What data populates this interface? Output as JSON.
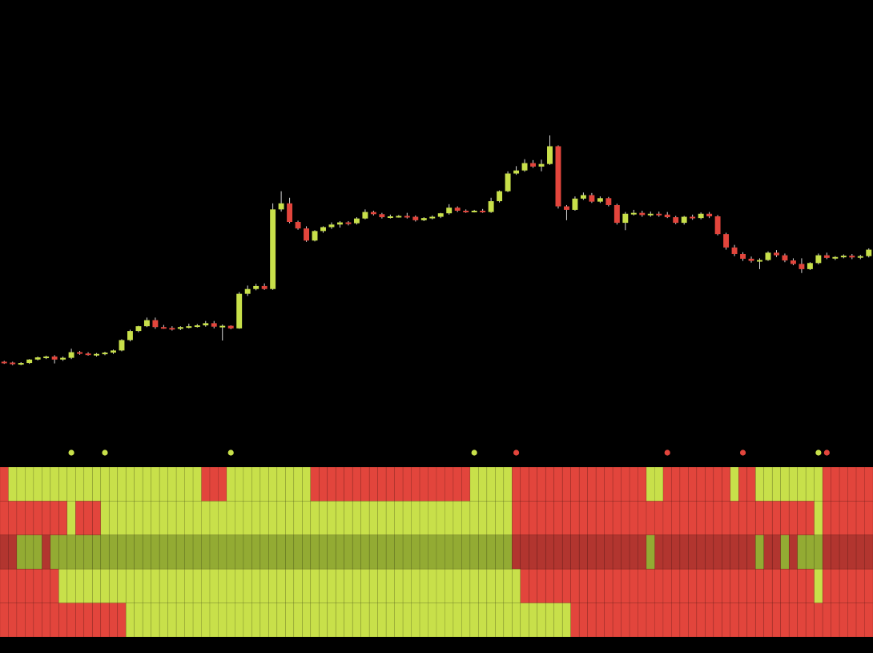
{
  "colors": {
    "background": "#000000",
    "up": "#c8e04a",
    "down": "#e2453c",
    "up_dim": "#93ab33",
    "down_dim": "#b2352f",
    "grid_line": "#000000"
  },
  "chart_data": [
    {
      "type": "candlestick",
      "title": "",
      "xlabel": "",
      "ylabel": "",
      "axes_visible": false,
      "grid": false,
      "ylim": [
        0,
        100
      ],
      "x": [
        0,
        1,
        2,
        3,
        4,
        5,
        6,
        7,
        8,
        9,
        10,
        11,
        12,
        13,
        14,
        15,
        16,
        17,
        18,
        19,
        20,
        21,
        22,
        23,
        24,
        25,
        26,
        27,
        28,
        29,
        30,
        31,
        32,
        33,
        34,
        35,
        36,
        37,
        38,
        39,
        40,
        41,
        42,
        43,
        44,
        45,
        46,
        47,
        48,
        49,
        50,
        51,
        52,
        53,
        54,
        55,
        56,
        57,
        58,
        59,
        60,
        61,
        62,
        63,
        64,
        65,
        66,
        67,
        68,
        69,
        70,
        71,
        72,
        73,
        74,
        75,
        76,
        77,
        78,
        79,
        80,
        81,
        82,
        83,
        84,
        85,
        86,
        87,
        88,
        89,
        90,
        91,
        92,
        93,
        94,
        95,
        96,
        97,
        98,
        99,
        100,
        101,
        102,
        103
      ],
      "ohlc": [
        [
          16.4,
          16.6,
          15.9,
          16.2
        ],
        [
          16.2,
          16.4,
          15.6,
          15.9
        ],
        [
          15.9,
          16.3,
          15.6,
          16.1
        ],
        [
          16.1,
          17.0,
          15.9,
          16.9
        ],
        [
          16.9,
          17.6,
          16.7,
          17.4
        ],
        [
          17.4,
          17.8,
          17.0,
          17.6
        ],
        [
          17.6,
          17.9,
          16.0,
          16.9
        ],
        [
          16.9,
          17.6,
          16.6,
          17.3
        ],
        [
          17.3,
          19.4,
          17.0,
          18.6
        ],
        [
          18.6,
          18.9,
          18.0,
          18.3
        ],
        [
          18.3,
          18.6,
          17.8,
          18.1
        ],
        [
          18.1,
          18.4,
          17.6,
          18.2
        ],
        [
          18.2,
          18.7,
          17.9,
          18.5
        ],
        [
          18.5,
          19.2,
          18.2,
          19.0
        ],
        [
          19.0,
          21.6,
          18.8,
          21.4
        ],
        [
          21.4,
          23.8,
          21.1,
          23.5
        ],
        [
          23.5,
          24.7,
          23.2,
          24.6
        ],
        [
          24.6,
          26.6,
          24.4,
          26.0
        ],
        [
          26.0,
          26.6,
          24.0,
          24.4
        ],
        [
          24.4,
          24.9,
          24.0,
          24.2
        ],
        [
          24.2,
          24.6,
          23.6,
          24.0
        ],
        [
          24.0,
          24.6,
          23.7,
          24.4
        ],
        [
          24.4,
          25.2,
          24.1,
          24.6
        ],
        [
          24.6,
          25.1,
          24.3,
          24.8
        ],
        [
          24.8,
          25.8,
          24.5,
          25.3
        ],
        [
          25.3,
          25.8,
          24.1,
          24.5
        ],
        [
          24.5,
          25.0,
          21.3,
          24.7
        ],
        [
          24.7,
          24.8,
          23.9,
          24.1
        ],
        [
          24.1,
          32.5,
          24.0,
          32.1
        ],
        [
          32.1,
          34.0,
          31.6,
          33.2
        ],
        [
          33.2,
          34.4,
          32.9,
          33.9
        ],
        [
          33.9,
          34.5,
          33.0,
          33.2
        ],
        [
          33.2,
          53.0,
          33.0,
          51.6
        ],
        [
          51.6,
          55.8,
          51.1,
          53.0
        ],
        [
          53.0,
          54.3,
          48.4,
          48.7
        ],
        [
          48.7,
          49.0,
          46.9,
          47.2
        ],
        [
          47.2,
          47.7,
          44.1,
          44.4
        ],
        [
          44.4,
          46.8,
          44.2,
          46.6
        ],
        [
          46.6,
          47.7,
          46.2,
          47.5
        ],
        [
          47.5,
          48.6,
          47.1,
          48.1
        ],
        [
          48.1,
          48.9,
          47.4,
          48.6
        ],
        [
          48.6,
          48.9,
          47.9,
          48.4
        ],
        [
          48.4,
          49.8,
          48.1,
          49.5
        ],
        [
          49.5,
          51.6,
          49.3,
          51.0
        ],
        [
          51.0,
          51.3,
          50.2,
          50.5
        ],
        [
          50.5,
          50.8,
          49.5,
          49.8
        ],
        [
          49.8,
          50.4,
          49.5,
          50.0
        ],
        [
          50.0,
          50.3,
          49.7,
          50.1
        ],
        [
          50.1,
          50.8,
          49.5,
          49.9
        ],
        [
          49.9,
          50.2,
          48.8,
          49.1
        ],
        [
          49.1,
          49.8,
          48.9,
          49.6
        ],
        [
          49.6,
          50.2,
          49.3,
          49.9
        ],
        [
          49.9,
          50.8,
          49.6,
          50.7
        ],
        [
          50.7,
          52.8,
          50.4,
          52.0
        ],
        [
          52.0,
          52.3,
          51.0,
          51.3
        ],
        [
          51.3,
          51.6,
          50.8,
          51.1
        ],
        [
          51.1,
          51.5,
          50.9,
          51.3
        ],
        [
          51.3,
          51.7,
          50.8,
          51.0
        ],
        [
          51.0,
          54.3,
          50.8,
          53.5
        ],
        [
          53.5,
          56.0,
          53.2,
          55.8
        ],
        [
          55.8,
          60.4,
          55.6,
          59.9
        ],
        [
          59.9,
          61.6,
          59.6,
          60.6
        ],
        [
          60.6,
          63.2,
          60.3,
          62.3
        ],
        [
          62.3,
          63.0,
          61.2,
          61.5
        ],
        [
          61.5,
          63.1,
          60.4,
          62.1
        ],
        [
          62.1,
          68.7,
          61.9,
          66.2
        ],
        [
          66.2,
          66.4,
          51.8,
          52.3
        ],
        [
          52.3,
          52.6,
          49.1,
          51.5
        ],
        [
          51.5,
          54.6,
          51.3,
          54.1
        ],
        [
          54.1,
          55.5,
          53.8,
          54.9
        ],
        [
          54.9,
          55.4,
          53.1,
          53.4
        ],
        [
          53.4,
          54.6,
          53.1,
          54.2
        ],
        [
          54.2,
          54.5,
          52.3,
          52.6
        ],
        [
          52.6,
          52.9,
          48.1,
          48.5
        ],
        [
          48.5,
          51.0,
          46.8,
          50.6
        ],
        [
          50.6,
          51.5,
          50.2,
          50.8
        ],
        [
          50.8,
          51.3,
          49.9,
          50.3
        ],
        [
          50.3,
          51.1,
          49.9,
          50.6
        ],
        [
          50.6,
          51.1,
          49.9,
          50.4
        ],
        [
          50.4,
          51.0,
          49.6,
          49.8
        ],
        [
          49.8,
          50.1,
          48.2,
          48.5
        ],
        [
          48.5,
          50.1,
          48.1,
          49.9
        ],
        [
          49.9,
          50.4,
          49.2,
          49.6
        ],
        [
          49.6,
          50.9,
          49.3,
          50.6
        ],
        [
          50.6,
          51.0,
          49.6,
          50.0
        ],
        [
          50.0,
          50.3,
          45.6,
          45.9
        ],
        [
          45.9,
          46.2,
          42.3,
          42.8
        ],
        [
          42.8,
          43.4,
          40.8,
          41.3
        ],
        [
          41.3,
          41.7,
          39.7,
          40.2
        ],
        [
          40.2,
          40.7,
          39.3,
          39.7
        ],
        [
          39.7,
          40.3,
          37.8,
          39.9
        ],
        [
          39.9,
          41.9,
          39.7,
          41.6
        ],
        [
          41.6,
          42.2,
          40.6,
          41.0
        ],
        [
          41.0,
          41.4,
          39.4,
          39.8
        ],
        [
          39.8,
          40.3,
          38.7,
          39.0
        ],
        [
          39.0,
          40.3,
          36.9,
          37.8
        ],
        [
          37.8,
          39.4,
          37.6,
          39.2
        ],
        [
          39.2,
          41.4,
          38.9,
          41.0
        ],
        [
          41.0,
          41.6,
          40.1,
          40.4
        ],
        [
          40.4,
          40.8,
          39.9,
          40.6
        ],
        [
          40.6,
          41.2,
          40.3,
          40.9
        ],
        [
          40.9,
          41.3,
          40.1,
          40.5
        ],
        [
          40.5,
          41.1,
          40.1,
          40.8
        ],
        [
          40.8,
          42.6,
          40.5,
          42.3
        ]
      ]
    },
    {
      "type": "heatmap",
      "title": "",
      "axes_visible": false,
      "legend": "none",
      "values_legend": {
        "1": "up",
        "-1": "down"
      },
      "signal_markers": [
        {
          "index": 8,
          "signal": "up"
        },
        {
          "index": 12,
          "signal": "up"
        },
        {
          "index": 27,
          "signal": "up"
        },
        {
          "index": 56,
          "signal": "up"
        },
        {
          "index": 61,
          "signal": "down"
        },
        {
          "index": 79,
          "signal": "down"
        },
        {
          "index": 88,
          "signal": "down"
        },
        {
          "index": 97,
          "signal": "up"
        },
        {
          "index": 98,
          "signal": "down"
        }
      ],
      "rows": [
        {
          "dim": false,
          "runs": [
            [
              0,
              1,
              -1
            ],
            [
              1,
              24,
              1
            ],
            [
              24,
              27,
              -1
            ],
            [
              27,
              37,
              1
            ],
            [
              37,
              56,
              -1
            ],
            [
              56,
              61,
              1
            ],
            [
              61,
              77,
              -1
            ],
            [
              77,
              79,
              1
            ],
            [
              79,
              87,
              -1
            ],
            [
              87,
              88,
              1
            ],
            [
              88,
              90,
              -1
            ],
            [
              90,
              98,
              1
            ],
            [
              98,
              104,
              -1
            ]
          ]
        },
        {
          "dim": false,
          "runs": [
            [
              0,
              8,
              -1
            ],
            [
              8,
              9,
              1
            ],
            [
              9,
              12,
              -1
            ],
            [
              12,
              61,
              1
            ],
            [
              61,
              97,
              -1
            ],
            [
              97,
              98,
              1
            ],
            [
              98,
              104,
              -1
            ]
          ]
        },
        {
          "dim": true,
          "runs": [
            [
              0,
              2,
              -1
            ],
            [
              2,
              5,
              1
            ],
            [
              5,
              6,
              -1
            ],
            [
              6,
              61,
              1
            ],
            [
              61,
              77,
              -1
            ],
            [
              77,
              78,
              1
            ],
            [
              78,
              90,
              -1
            ],
            [
              90,
              91,
              1
            ],
            [
              91,
              93,
              -1
            ],
            [
              93,
              94,
              1
            ],
            [
              94,
              95,
              -1
            ],
            [
              95,
              98,
              1
            ],
            [
              98,
              104,
              -1
            ]
          ]
        },
        {
          "dim": false,
          "runs": [
            [
              0,
              7,
              -1
            ],
            [
              7,
              62,
              1
            ],
            [
              62,
              97,
              -1
            ],
            [
              97,
              98,
              1
            ],
            [
              98,
              104,
              -1
            ]
          ]
        },
        {
          "dim": false,
          "runs": [
            [
              0,
              15,
              -1
            ],
            [
              15,
              68,
              1
            ],
            [
              68,
              104,
              -1
            ]
          ]
        }
      ]
    }
  ]
}
